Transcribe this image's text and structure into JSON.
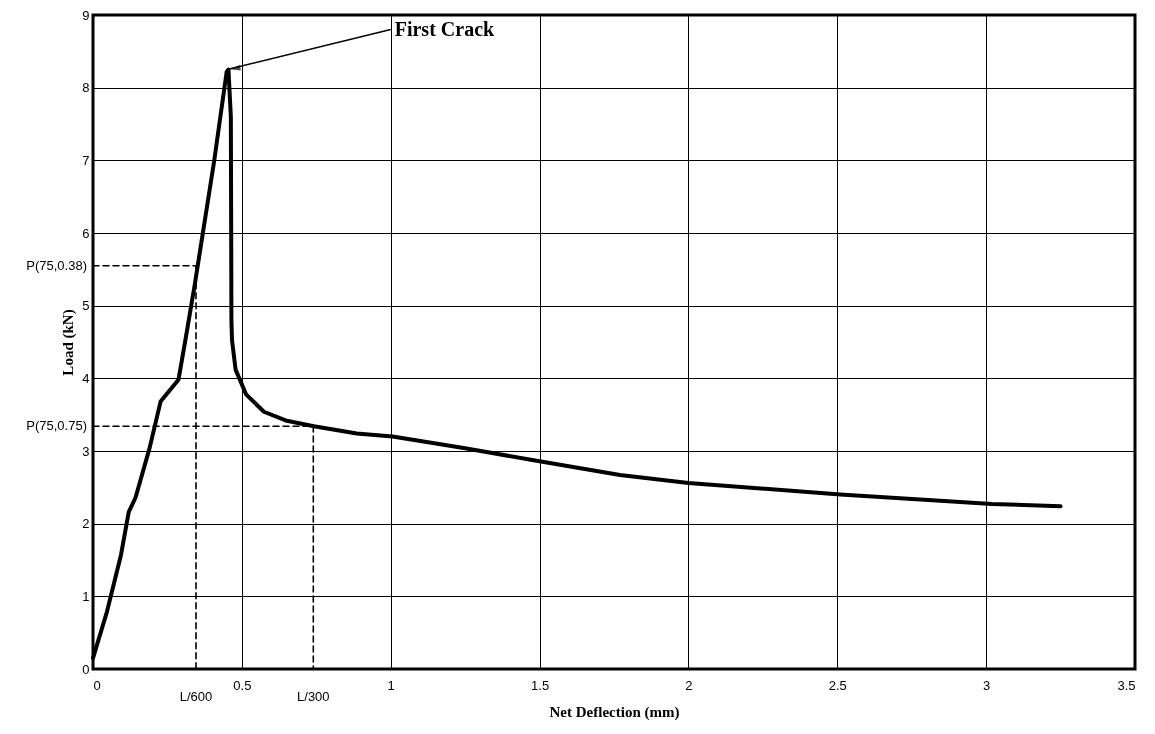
{
  "chart_data": {
    "type": "line",
    "xlabel": "Net Deflection (mm)",
    "ylabel": "Load (kN)",
    "xlim": [
      0,
      3.5
    ],
    "ylim": [
      0,
      9
    ],
    "xticks": [
      0,
      0.5,
      1,
      1.5,
      2,
      2.5,
      3,
      3.5
    ],
    "yticks": [
      0,
      1,
      2,
      3,
      4,
      5,
      6,
      7,
      8,
      9
    ],
    "grid": true,
    "annotations": [
      {
        "text": "First Crack",
        "x": 0.45,
        "y": 8.25
      },
      {
        "text": "P(75,0.38)",
        "x": 0,
        "y": 5.55
      },
      {
        "text": "P(75,0.75)",
        "x": 0,
        "y": 3.34
      },
      {
        "text": "L/600",
        "x": 0.346,
        "y": 0
      },
      {
        "text": "L/300",
        "x": 0.74,
        "y": 0
      }
    ],
    "series": [
      {
        "color": "#000000",
        "line_style": "solid",
        "x": [
          0,
          0.047,
          0.094,
          0.12,
          0.143,
          0.19,
          0.227,
          0.287,
          0.31,
          0.341,
          0.407,
          0.449,
          0.455,
          0.463,
          0.465,
          0.467,
          0.479,
          0.514,
          0.574,
          0.647,
          0.742,
          0.886,
          1.006,
          1.245,
          1.485,
          1.77,
          2.0,
          2.51,
          3.02,
          3.25
        ],
        "values": [
          0.15,
          0.79,
          1.57,
          2.16,
          2.36,
          3.04,
          3.68,
          3.98,
          4.52,
          5.27,
          6.99,
          8.22,
          8.25,
          7.6,
          4.78,
          4.52,
          4.12,
          3.78,
          3.54,
          3.42,
          3.34,
          3.24,
          3.2,
          3.04,
          2.87,
          2.67,
          2.56,
          2.4,
          2.27,
          2.24
        ]
      },
      {
        "color": "#000000",
        "line_style": "dashed",
        "x": [
          0,
          0.346,
          0.346
        ],
        "values": [
          5.55,
          5.55,
          0
        ]
      },
      {
        "color": "#000000",
        "line_style": "dashed",
        "x": [
          0,
          0.74,
          0.74
        ],
        "values": [
          3.34,
          3.34,
          0
        ]
      }
    ]
  }
}
